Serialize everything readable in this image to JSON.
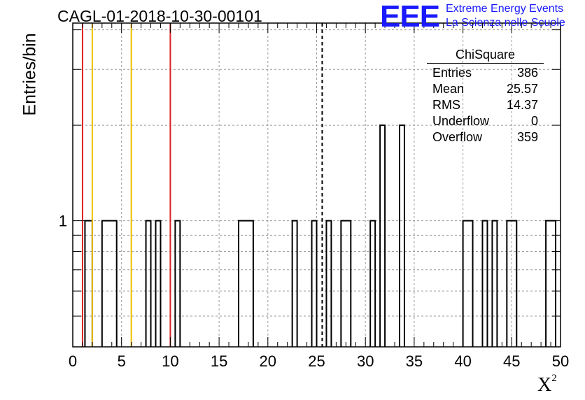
{
  "title": "CAGL-01-2018-10-30-00101",
  "logo": {
    "mark": "EEE",
    "line1": "Extreme Energy Events",
    "line2": "La Scienza nelle Scuole",
    "color": "#1a1aff"
  },
  "stats": {
    "title": "ChiSquare",
    "rows": [
      {
        "label": "Entries",
        "value": "386"
      },
      {
        "label": "Mean",
        "value": "25.57"
      },
      {
        "label": "RMS",
        "value": "14.37"
      },
      {
        "label": "Underflow",
        "value": "0"
      },
      {
        "label": "Overflow",
        "value": "359"
      }
    ]
  },
  "chart_data": {
    "type": "bar",
    "title": "CAGL-01-2018-10-30-00101",
    "xlabel": "X",
    "xlabel_sup": "2",
    "ylabel": "Entries/bin",
    "xlim": [
      0,
      50
    ],
    "ylim_log": [
      0.4,
      4.2
    ],
    "log_y": true,
    "grid": true,
    "bin_width": 0.75,
    "bins": [
      {
        "x0": 1.25,
        "x1": 2.0,
        "count": 1
      },
      {
        "x0": 3.0,
        "x1": 4.5,
        "count": 1
      },
      {
        "x0": 7.5,
        "x1": 8.0,
        "count": 1
      },
      {
        "x0": 8.5,
        "x1": 9.0,
        "count": 1
      },
      {
        "x0": 10.5,
        "x1": 11.0,
        "count": 1
      },
      {
        "x0": 17.0,
        "x1": 18.5,
        "count": 1
      },
      {
        "x0": 22.5,
        "x1": 23.0,
        "count": 1
      },
      {
        "x0": 24.5,
        "x1": 25.0,
        "count": 1
      },
      {
        "x0": 26.0,
        "x1": 26.5,
        "count": 1
      },
      {
        "x0": 27.5,
        "x1": 28.5,
        "count": 1
      },
      {
        "x0": 30.5,
        "x1": 31.0,
        "count": 1
      },
      {
        "x0": 31.5,
        "x1": 32.0,
        "count": 2
      },
      {
        "x0": 33.5,
        "x1": 34.0,
        "count": 2
      },
      {
        "x0": 40.0,
        "x1": 41.0,
        "count": 1
      },
      {
        "x0": 42.0,
        "x1": 42.5,
        "count": 1
      },
      {
        "x0": 43.0,
        "x1": 43.5,
        "count": 1
      },
      {
        "x0": 44.5,
        "x1": 45.5,
        "count": 1
      },
      {
        "x0": 48.5,
        "x1": 49.5,
        "count": 1
      }
    ],
    "reference_lines": [
      {
        "x": 1.0,
        "color": "#dd2222",
        "style": "solid"
      },
      {
        "x": 2.0,
        "color": "#eec000",
        "style": "solid"
      },
      {
        "x": 6.0,
        "color": "#eec000",
        "style": "solid"
      },
      {
        "x": 10.0,
        "color": "#dd2222",
        "style": "solid"
      },
      {
        "x": 25.57,
        "color": "#000000",
        "style": "dashed"
      }
    ],
    "x_ticks": [
      0,
      5,
      10,
      15,
      20,
      25,
      30,
      35,
      40,
      45,
      50
    ],
    "y_ticks_labeled": [
      1
    ],
    "y_grid": [
      0.5,
      0.6,
      0.7,
      0.8,
      0.9,
      1,
      2,
      3,
      4
    ]
  }
}
